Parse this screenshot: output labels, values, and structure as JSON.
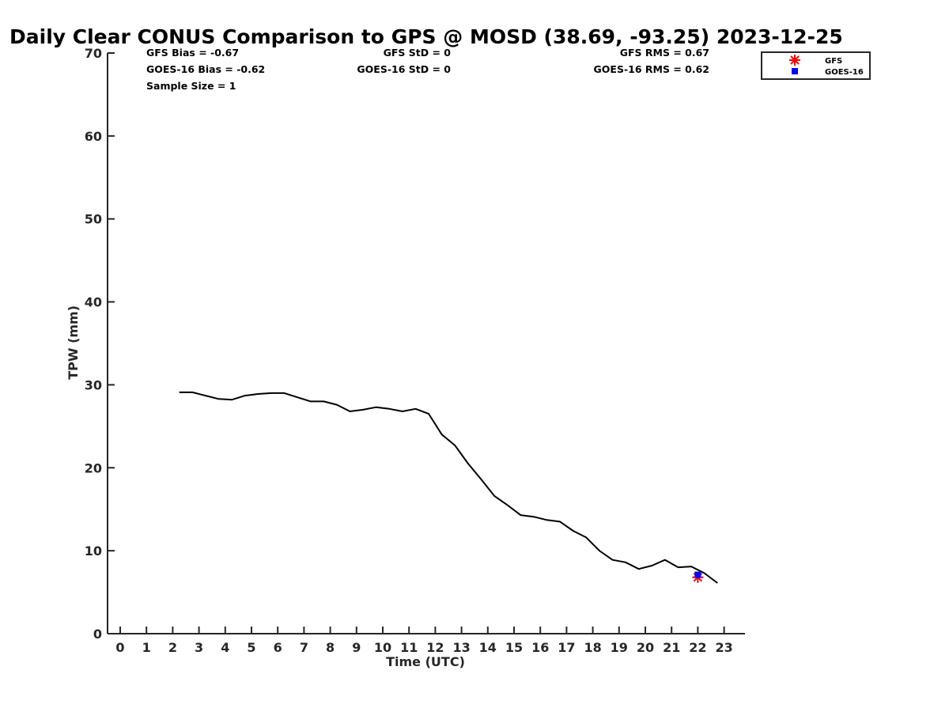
{
  "chart_data": {
    "type": "line",
    "title": "Daily Clear CONUS Comparison to GPS @ MOSD (38.69, -93.25) 2023-12-25",
    "xlabel": "Time (UTC)",
    "ylabel": "TPW (mm)",
    "xlim": [
      -0.5,
      23.7
    ],
    "ylim": [
      0,
      70
    ],
    "x_ticks": [
      0,
      1,
      2,
      3,
      4,
      5,
      6,
      7,
      8,
      9,
      10,
      11,
      12,
      13,
      14,
      15,
      16,
      17,
      18,
      19,
      20,
      21,
      22,
      23
    ],
    "y_ticks": [
      0,
      10,
      20,
      30,
      40,
      50,
      60,
      70
    ],
    "grid": false,
    "legend_placement": "top-right (outside plot)",
    "stats": {
      "gfs_bias": "GFS Bias = -0.67",
      "goes_bias": "GOES-16 Bias = -0.62",
      "sample_size": "Sample Size = 1",
      "gfs_std": "GFS StD = 0",
      "goes_std": "GOES-16 StD = 0",
      "gfs_rms": "GFS RMS = 0.67",
      "goes_rms": "GOES-16 RMS = 0.62"
    },
    "gps_line": {
      "color": "#000000",
      "points": [
        [
          2.25,
          29.1
        ],
        [
          2.75,
          29.1
        ],
        [
          3.25,
          28.7
        ],
        [
          3.75,
          28.3
        ],
        [
          4.25,
          28.2
        ],
        [
          4.75,
          28.7
        ],
        [
          5.25,
          28.9
        ],
        [
          5.75,
          29.0
        ],
        [
          6.25,
          29.0
        ],
        [
          6.75,
          28.5
        ],
        [
          7.25,
          28.0
        ],
        [
          7.75,
          28.0
        ],
        [
          8.25,
          27.6
        ],
        [
          8.75,
          26.8
        ],
        [
          9.25,
          27.0
        ],
        [
          9.75,
          27.3
        ],
        [
          10.25,
          27.1
        ],
        [
          10.75,
          26.8
        ],
        [
          11.25,
          27.1
        ],
        [
          11.75,
          26.5
        ],
        [
          12.25,
          24.0
        ],
        [
          12.75,
          22.7
        ],
        [
          13.25,
          20.5
        ],
        [
          13.75,
          18.6
        ],
        [
          14.25,
          16.6
        ],
        [
          14.75,
          15.5
        ],
        [
          15.25,
          14.3
        ],
        [
          15.75,
          14.1
        ],
        [
          16.25,
          13.7
        ],
        [
          16.75,
          13.5
        ],
        [
          17.25,
          12.4
        ],
        [
          17.75,
          11.6
        ],
        [
          18.25,
          10.0
        ],
        [
          18.75,
          8.9
        ],
        [
          19.25,
          8.6
        ],
        [
          19.75,
          7.8
        ],
        [
          20.25,
          8.2
        ],
        [
          20.75,
          8.9
        ],
        [
          21.25,
          8.0
        ],
        [
          21.75,
          8.1
        ],
        [
          22.25,
          7.3
        ],
        [
          22.75,
          6.1
        ]
      ]
    },
    "series": [
      {
        "name": "GFS",
        "marker": "asterisk",
        "color": "#ff0000",
        "x": [
          22.0
        ],
        "y": [
          6.8
        ]
      },
      {
        "name": "GOES-16",
        "marker": "square",
        "color": "#0000ff",
        "x": [
          22.0
        ],
        "y": [
          7.1
        ]
      }
    ]
  }
}
